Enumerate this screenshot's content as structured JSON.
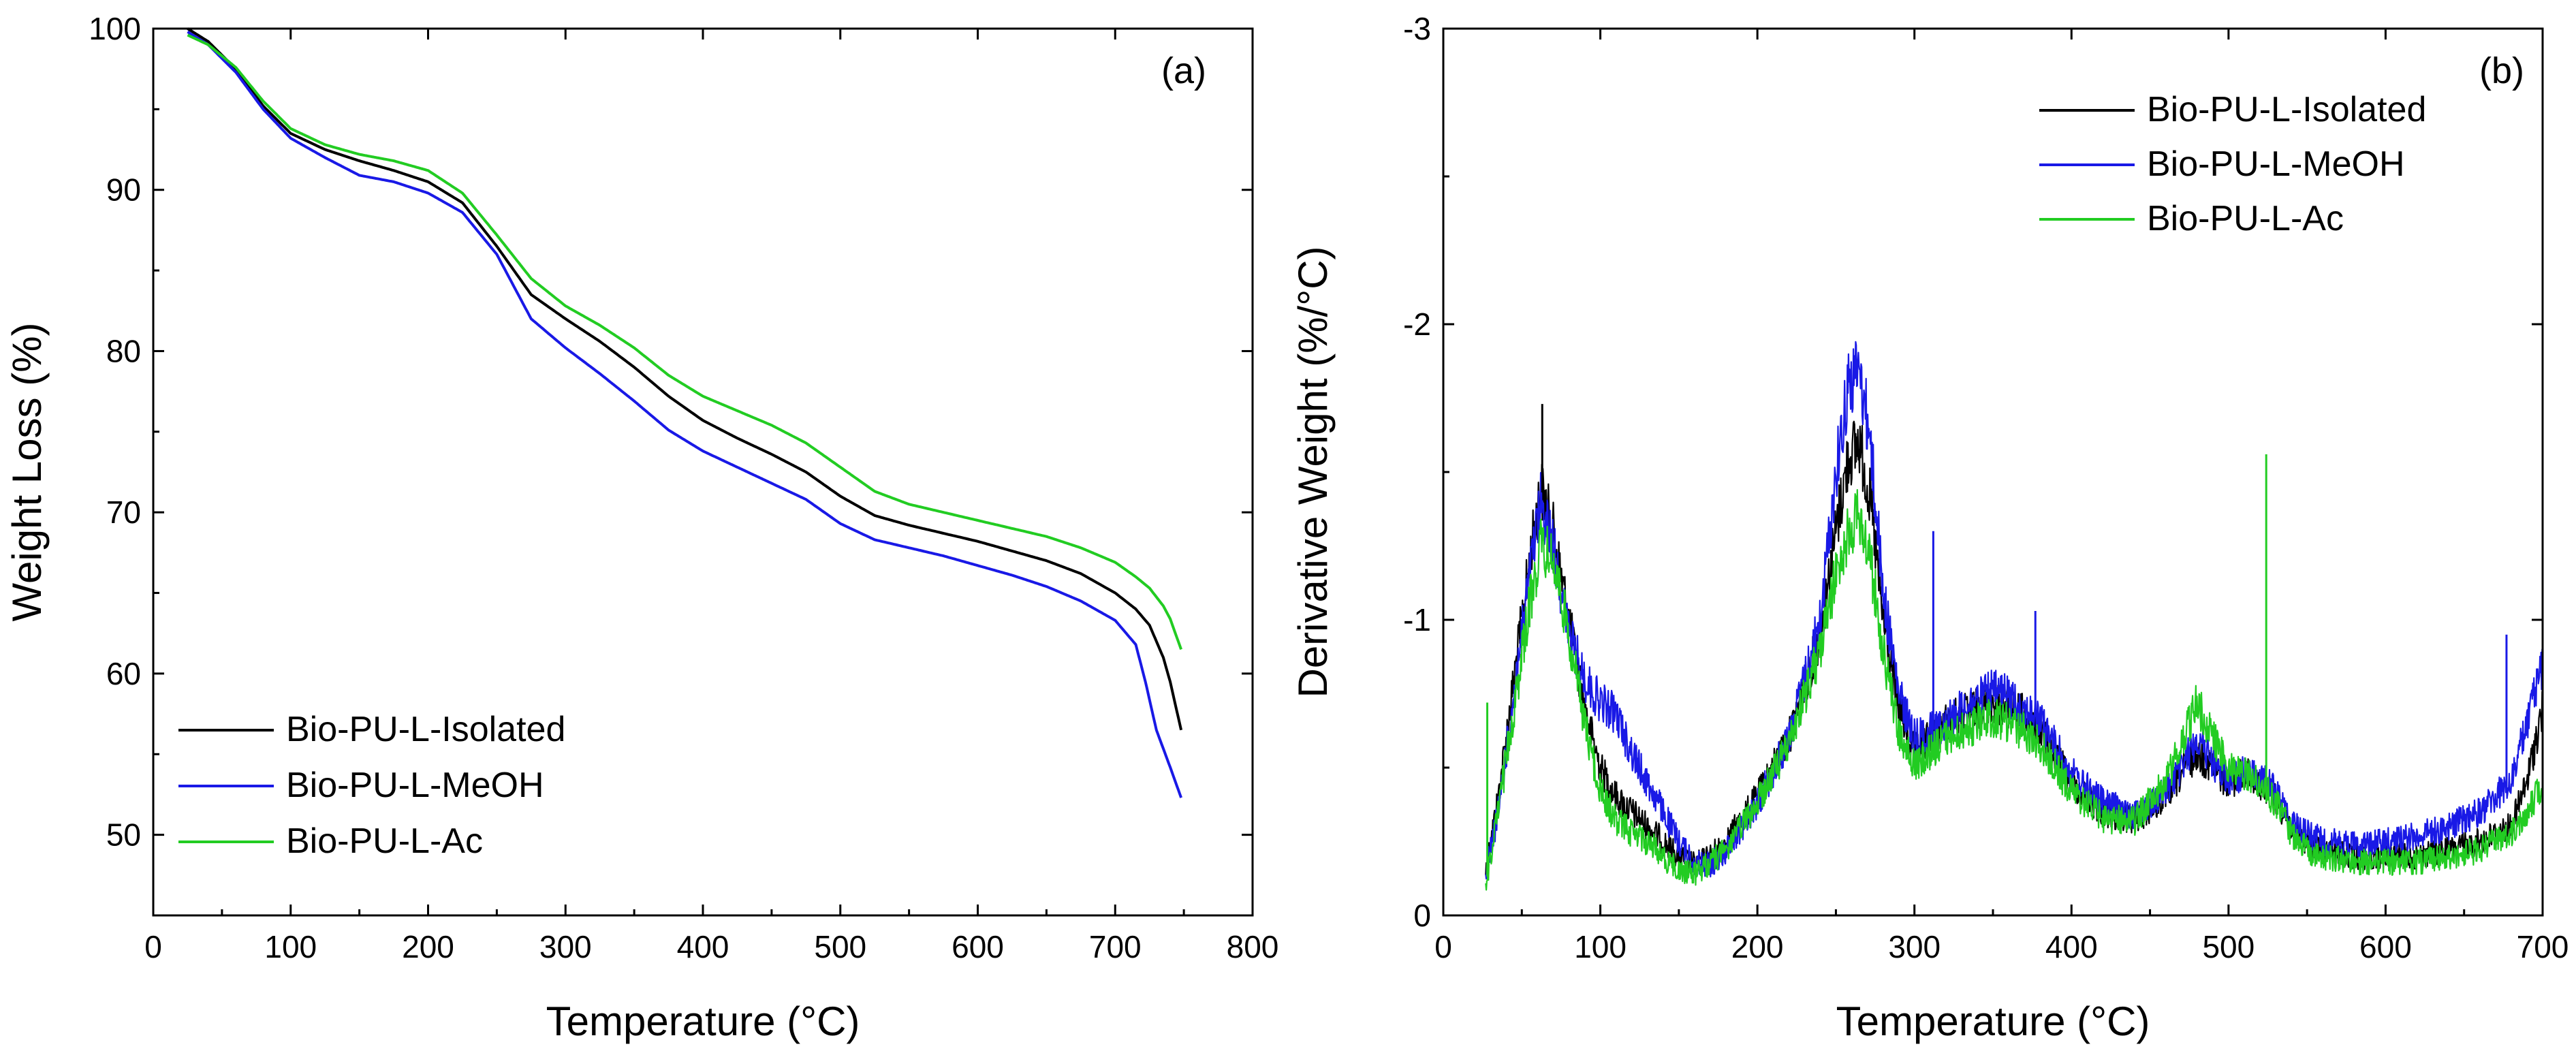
{
  "chart_data": [
    {
      "type": "line",
      "panel": "(a)",
      "xlabel": "Temperature (°C)",
      "ylabel": "Weight Loss (%)",
      "xlim": [
        0,
        800
      ],
      "ylim": [
        45,
        100
      ],
      "xticks": [
        0,
        100,
        200,
        300,
        400,
        500,
        600,
        700,
        800
      ],
      "yticks": [
        50,
        60,
        70,
        80,
        90,
        100
      ],
      "legend_position": "bottom-left",
      "series": [
        {
          "name": "Bio-PU-L-Isolated",
          "color": "#000000",
          "x": [
            25,
            40,
            60,
            80,
            100,
            125,
            150,
            175,
            200,
            225,
            250,
            275,
            300,
            325,
            350,
            375,
            400,
            425,
            450,
            475,
            500,
            525,
            550,
            575,
            600,
            625,
            650,
            675,
            700,
            715,
            725,
            735,
            740,
            748
          ],
          "y": [
            100,
            99.2,
            97.5,
            95.2,
            93.5,
            92.5,
            91.8,
            91.2,
            90.5,
            89.2,
            86.5,
            83.5,
            82.0,
            80.6,
            79.0,
            77.2,
            75.7,
            74.6,
            73.6,
            72.5,
            71.0,
            69.8,
            69.2,
            68.7,
            68.2,
            67.6,
            67.0,
            66.2,
            65.0,
            64.0,
            63.0,
            61.0,
            59.5,
            56.5
          ]
        },
        {
          "name": "Bio-PU-L-MeOH",
          "color": "#1919e6",
          "x": [
            25,
            40,
            60,
            80,
            100,
            125,
            150,
            175,
            200,
            225,
            250,
            275,
            300,
            325,
            350,
            375,
            400,
            425,
            450,
            475,
            500,
            525,
            550,
            575,
            600,
            625,
            650,
            675,
            700,
            715,
            722,
            730,
            740,
            748
          ],
          "y": [
            99.8,
            99.0,
            97.3,
            95.0,
            93.2,
            92.0,
            90.9,
            90.5,
            89.8,
            88.6,
            86.0,
            82.0,
            80.2,
            78.6,
            76.9,
            75.1,
            73.8,
            72.8,
            71.8,
            70.8,
            69.3,
            68.3,
            67.8,
            67.3,
            66.7,
            66.1,
            65.4,
            64.5,
            63.3,
            61.8,
            59.5,
            56.5,
            54.2,
            52.3
          ]
        },
        {
          "name": "Bio-PU-L-Ac",
          "color": "#22cc22",
          "x": [
            25,
            40,
            60,
            80,
            100,
            125,
            150,
            175,
            200,
            225,
            250,
            275,
            300,
            325,
            350,
            375,
            400,
            425,
            450,
            475,
            500,
            525,
            550,
            575,
            600,
            625,
            650,
            675,
            700,
            715,
            725,
            735,
            740,
            748
          ],
          "y": [
            99.6,
            99.0,
            97.6,
            95.5,
            93.8,
            92.8,
            92.2,
            91.8,
            91.2,
            89.8,
            87.2,
            84.5,
            82.8,
            81.6,
            80.2,
            78.5,
            77.2,
            76.3,
            75.4,
            74.3,
            72.8,
            71.3,
            70.5,
            70.0,
            69.5,
            69.0,
            68.5,
            67.8,
            66.9,
            66.0,
            65.3,
            64.2,
            63.4,
            61.5
          ]
        }
      ]
    },
    {
      "type": "line",
      "panel": "(b)",
      "xlabel": "Temperature (°C)",
      "ylabel": "Derivative Weight (%/°C)",
      "xlim": [
        0,
        700
      ],
      "ylim": [
        0,
        -3
      ],
      "y_axis_inverted": true,
      "xticks": [
        0,
        100,
        200,
        300,
        400,
        500,
        600,
        700
      ],
      "yticks": [
        0,
        -1,
        -2,
        -3
      ],
      "legend_position": "top-right",
      "series": [
        {
          "name": "Bio-PU-L-Isolated",
          "color": "#000000",
          "x": [
            27,
            35,
            45,
            55,
            62,
            70,
            80,
            90,
            100,
            110,
            120,
            130,
            140,
            150,
            160,
            170,
            180,
            200,
            220,
            240,
            250,
            258,
            265,
            272,
            280,
            290,
            300,
            310,
            320,
            330,
            340,
            350,
            360,
            370,
            380,
            400,
            420,
            440,
            460,
            470,
            480,
            490,
            500,
            510,
            520,
            530,
            540,
            550,
            560,
            580,
            600,
            620,
            640,
            660,
            680,
            690,
            700
          ],
          "y": [
            -0.15,
            -0.4,
            -0.8,
            -1.2,
            -1.45,
            -1.3,
            -1.0,
            -0.7,
            -0.5,
            -0.4,
            -0.35,
            -0.3,
            -0.25,
            -0.2,
            -0.17,
            -0.2,
            -0.25,
            -0.4,
            -0.6,
            -0.95,
            -1.3,
            -1.55,
            -1.6,
            -1.4,
            -1.0,
            -0.7,
            -0.55,
            -0.6,
            -0.65,
            -0.68,
            -0.7,
            -0.72,
            -0.7,
            -0.68,
            -0.62,
            -0.45,
            -0.35,
            -0.32,
            -0.4,
            -0.48,
            -0.55,
            -0.5,
            -0.45,
            -0.48,
            -0.45,
            -0.4,
            -0.3,
            -0.25,
            -0.22,
            -0.2,
            -0.2,
            -0.2,
            -0.22,
            -0.25,
            -0.3,
            -0.45,
            -0.7
          ]
        },
        {
          "name": "Bio-PU-L-MeOH",
          "color": "#1919e6",
          "x": [
            27,
            35,
            45,
            55,
            62,
            70,
            80,
            90,
            100,
            110,
            120,
            130,
            140,
            150,
            160,
            170,
            180,
            200,
            220,
            240,
            250,
            258,
            265,
            272,
            280,
            290,
            300,
            310,
            320,
            330,
            340,
            350,
            360,
            370,
            380,
            400,
            420,
            440,
            460,
            470,
            480,
            490,
            500,
            510,
            520,
            530,
            540,
            550,
            560,
            580,
            600,
            620,
            640,
            660,
            680,
            690,
            700
          ],
          "y": [
            -0.15,
            -0.35,
            -0.75,
            -1.15,
            -1.4,
            -1.25,
            -0.95,
            -0.8,
            -0.72,
            -0.68,
            -0.55,
            -0.45,
            -0.35,
            -0.25,
            -0.18,
            -0.17,
            -0.22,
            -0.38,
            -0.6,
            -1.0,
            -1.5,
            -1.8,
            -1.85,
            -1.6,
            -1.1,
            -0.75,
            -0.6,
            -0.62,
            -0.66,
            -0.7,
            -0.73,
            -0.76,
            -0.74,
            -0.7,
            -0.66,
            -0.48,
            -0.38,
            -0.34,
            -0.42,
            -0.5,
            -0.6,
            -0.52,
            -0.46,
            -0.48,
            -0.47,
            -0.42,
            -0.32,
            -0.28,
            -0.25,
            -0.24,
            -0.25,
            -0.27,
            -0.3,
            -0.35,
            -0.45,
            -0.65,
            -0.85
          ]
        },
        {
          "name": "Bio-PU-L-Ac",
          "color": "#22cc22",
          "x": [
            27,
            35,
            45,
            55,
            62,
            70,
            80,
            90,
            100,
            110,
            120,
            130,
            140,
            150,
            160,
            170,
            180,
            200,
            220,
            240,
            250,
            258,
            265,
            272,
            280,
            290,
            300,
            310,
            320,
            330,
            340,
            350,
            360,
            370,
            380,
            400,
            420,
            440,
            460,
            470,
            480,
            490,
            500,
            510,
            520,
            530,
            540,
            550,
            560,
            580,
            600,
            620,
            640,
            660,
            680,
            690,
            700
          ],
          "y": [
            -0.1,
            -0.35,
            -0.7,
            -1.05,
            -1.25,
            -1.2,
            -0.95,
            -0.65,
            -0.42,
            -0.32,
            -0.28,
            -0.25,
            -0.2,
            -0.15,
            -0.14,
            -0.18,
            -0.22,
            -0.38,
            -0.58,
            -0.9,
            -1.15,
            -1.3,
            -1.35,
            -1.2,
            -0.9,
            -0.62,
            -0.5,
            -0.55,
            -0.6,
            -0.62,
            -0.65,
            -0.67,
            -0.65,
            -0.62,
            -0.58,
            -0.42,
            -0.33,
            -0.32,
            -0.45,
            -0.58,
            -0.72,
            -0.6,
            -0.5,
            -0.48,
            -0.45,
            -0.38,
            -0.28,
            -0.22,
            -0.2,
            -0.18,
            -0.18,
            -0.18,
            -0.2,
            -0.22,
            -0.28,
            -0.35,
            -0.45
          ]
        }
      ],
      "spikes": [
        {
          "series": "Bio-PU-L-Isolated",
          "x": 63,
          "y": -1.73
        },
        {
          "series": "Bio-PU-L-MeOH",
          "x": 312,
          "y": -1.3
        },
        {
          "series": "Bio-PU-L-MeOH",
          "x": 377,
          "y": -1.03
        },
        {
          "series": "Bio-PU-L-MeOH",
          "x": 677,
          "y": -0.95
        },
        {
          "series": "Bio-PU-L-Ac",
          "x": 28,
          "y": -0.72
        },
        {
          "series": "Bio-PU-L-Ac",
          "x": 524,
          "y": -1.56
        }
      ]
    }
  ]
}
